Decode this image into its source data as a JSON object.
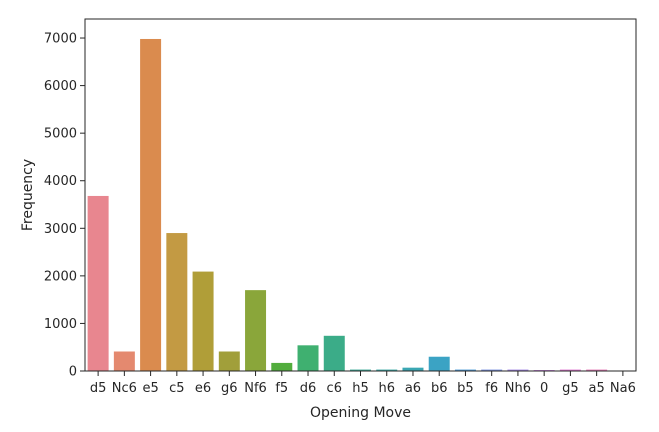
{
  "chart_data": {
    "type": "bar",
    "xlabel": "Opening Move",
    "ylabel": "Frequency",
    "ylim": [
      0,
      7400
    ],
    "yticks": [
      0,
      1000,
      2000,
      3000,
      4000,
      5000,
      6000,
      7000
    ],
    "grid": false,
    "legend": "none",
    "categories": [
      "d5",
      "Nc6",
      "e5",
      "c5",
      "e6",
      "g6",
      "Nf6",
      "f5",
      "d6",
      "c6",
      "h5",
      "h6",
      "a6",
      "b6",
      "b5",
      "f6",
      "Nh6",
      "0",
      "g5",
      "a5",
      "Na6"
    ],
    "values": [
      3680,
      410,
      6980,
      2900,
      2090,
      410,
      1700,
      170,
      540,
      740,
      30,
      30,
      70,
      300,
      30,
      30,
      30,
      20,
      30,
      30,
      10
    ],
    "colors": [
      "#e8868f",
      "#e4896f",
      "#da8b4e",
      "#c39a43",
      "#b09e38",
      "#a19f3a",
      "#8aa63a",
      "#52ad3d",
      "#3fb070",
      "#3bac88",
      "#39aa98",
      "#38a8a5",
      "#3aa7b3",
      "#3ba3c4",
      "#4d9ad8",
      "#7b92e0",
      "#a387e6",
      "#c77de0",
      "#e278d2",
      "#e67cb8",
      "#e87f9b"
    ]
  }
}
